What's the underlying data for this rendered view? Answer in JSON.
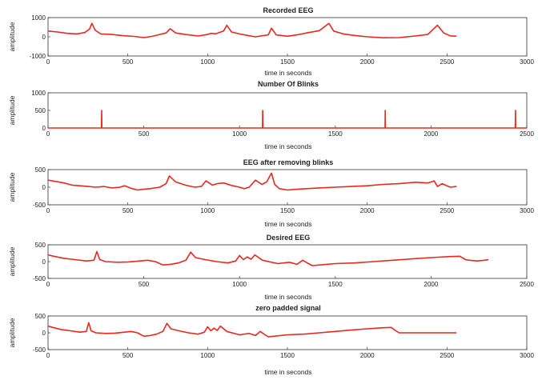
{
  "chart_data": [
    {
      "type": "line",
      "title": "Recorded EEG",
      "xlabel": "time in seconds",
      "ylabel": "amplitude",
      "xlim": [
        0,
        3000
      ],
      "ylim": [
        -1000,
        1000
      ],
      "xticks": [
        0,
        500,
        1000,
        1500,
        2000,
        2500,
        3000
      ],
      "yticks": [
        -1000,
        0,
        1000
      ],
      "series": [
        {
          "color": "#e8271e",
          "x": [
            0,
            60,
            120,
            180,
            230,
            260,
            275,
            295,
            330,
            400,
            470,
            540,
            600,
            650,
            700,
            740,
            765,
            800,
            860,
            940,
            1000,
            1020,
            1050,
            1100,
            1120,
            1150,
            1200,
            1250,
            1300,
            1380,
            1400,
            1430,
            1500,
            1560,
            1620,
            1700,
            1760,
            1790,
            1850,
            1920,
            2000,
            2100,
            2200,
            2300,
            2380,
            2440,
            2480,
            2520,
            2560
          ],
          "y": [
            300,
            250,
            180,
            150,
            220,
            400,
            700,
            350,
            150,
            120,
            60,
            20,
            -40,
            20,
            120,
            200,
            420,
            200,
            120,
            40,
            120,
            180,
            160,
            300,
            600,
            250,
            150,
            70,
            0,
            100,
            450,
            100,
            30,
            100,
            200,
            320,
            700,
            300,
            150,
            70,
            0,
            -50,
            -40,
            40,
            120,
            600,
            200,
            50,
            30
          ]
        }
      ]
    },
    {
      "type": "line",
      "title": "Number Of Blinks",
      "xlabel": "time in seconds",
      "ylabel": "amplitude",
      "xlim": [
        0,
        2500
      ],
      "ylim": [
        0,
        1000
      ],
      "xticks": [
        0,
        500,
        1000,
        1500,
        2000,
        2500
      ],
      "yticks": [
        0,
        500,
        1000
      ],
      "series": [
        {
          "color": "#e8271e",
          "x": [
            0,
            279,
            280,
            281,
            1120,
            1121,
            1122,
            1760,
            1761,
            1762,
            2440,
            2441,
            2442,
            2500
          ],
          "y": [
            0,
            0,
            500,
            0,
            0,
            500,
            0,
            0,
            500,
            0,
            0,
            500,
            0,
            0
          ]
        }
      ]
    },
    {
      "type": "line",
      "title": "EEG after removing blinks",
      "xlabel": "time in seconds",
      "ylabel": "amplitude",
      "xlim": [
        0,
        3000
      ],
      "ylim": [
        -500,
        500
      ],
      "xticks": [
        0,
        500,
        1000,
        1500,
        2000,
        2500,
        3000
      ],
      "yticks": [
        -500,
        0,
        500
      ],
      "series": [
        {
          "color": "#e8271e",
          "x": [
            0,
            40,
            100,
            150,
            200,
            250,
            300,
            350,
            400,
            450,
            480,
            520,
            560,
            600,
            640,
            700,
            740,
            760,
            800,
            860,
            920,
            960,
            990,
            1010,
            1030,
            1060,
            1100,
            1150,
            1200,
            1230,
            1260,
            1300,
            1340,
            1370,
            1400,
            1420,
            1450,
            1500,
            1560,
            1620,
            1700,
            1800,
            1900,
            2000,
            2100,
            2200,
            2300,
            2380,
            2420,
            2440,
            2470,
            2520,
            2560
          ],
          "y": [
            200,
            170,
            120,
            60,
            40,
            20,
            0,
            20,
            -20,
            0,
            40,
            -30,
            -80,
            -60,
            -40,
            0,
            100,
            320,
            150,
            60,
            0,
            20,
            180,
            120,
            60,
            100,
            120,
            50,
            0,
            -40,
            0,
            200,
            80,
            150,
            400,
            80,
            -40,
            -80,
            -60,
            -40,
            -20,
            0,
            20,
            40,
            80,
            100,
            140,
            120,
            180,
            20,
            100,
            0,
            20
          ]
        }
      ]
    },
    {
      "type": "line",
      "title": "Desired EEG",
      "xlabel": "time in seconds",
      "ylabel": "amplitude",
      "xlim": [
        0,
        2500
      ],
      "ylim": [
        -500,
        500
      ],
      "xticks": [
        0,
        500,
        1000,
        1500,
        2000,
        2500
      ],
      "yticks": [
        -500,
        0,
        500
      ],
      "series": [
        {
          "color": "#e8271e",
          "x": [
            0,
            30,
            80,
            140,
            200,
            240,
            255,
            270,
            300,
            360,
            420,
            480,
            520,
            560,
            600,
            640,
            680,
            720,
            745,
            770,
            820,
            880,
            940,
            980,
            1000,
            1020,
            1040,
            1060,
            1080,
            1120,
            1200,
            1260,
            1300,
            1330,
            1360,
            1380,
            1420,
            1500,
            1600,
            1700,
            1800,
            1900,
            2000,
            2100,
            2150,
            2180,
            2200,
            2240,
            2280,
            2300
          ],
          "y": [
            200,
            160,
            100,
            60,
            20,
            40,
            300,
            60,
            0,
            -20,
            -10,
            20,
            40,
            0,
            -100,
            -80,
            -40,
            40,
            280,
            120,
            60,
            0,
            -40,
            20,
            180,
            60,
            140,
            70,
            200,
            40,
            -60,
            -20,
            -80,
            40,
            -60,
            -120,
            -100,
            -60,
            -40,
            0,
            40,
            80,
            120,
            150,
            160,
            60,
            40,
            20,
            40,
            60
          ]
        }
      ]
    },
    {
      "type": "line",
      "title": "zero padded signal",
      "xlabel": "time in seconds",
      "ylabel": "amplitude",
      "xlim": [
        0,
        3000
      ],
      "ylim": [
        -500,
        500
      ],
      "xticks": [
        0,
        500,
        1000,
        1500,
        2000,
        2500,
        3000
      ],
      "yticks": [
        -500,
        0,
        500
      ],
      "series": [
        {
          "color": "#e8271e",
          "x": [
            0,
            30,
            80,
            140,
            200,
            240,
            255,
            270,
            300,
            360,
            420,
            480,
            520,
            560,
            600,
            640,
            680,
            720,
            745,
            770,
            820,
            880,
            940,
            980,
            1000,
            1020,
            1040,
            1060,
            1080,
            1120,
            1200,
            1260,
            1300,
            1330,
            1360,
            1380,
            1420,
            1500,
            1600,
            1700,
            1800,
            1900,
            2000,
            2100,
            2150,
            2180,
            2200,
            2230,
            2300,
            2400,
            2500,
            2560
          ],
          "y": [
            200,
            160,
            100,
            60,
            20,
            40,
            300,
            60,
            0,
            -20,
            -10,
            20,
            40,
            0,
            -100,
            -80,
            -40,
            40,
            280,
            120,
            60,
            0,
            -40,
            20,
            180,
            60,
            140,
            70,
            200,
            40,
            -60,
            -20,
            -80,
            40,
            -60,
            -120,
            -100,
            -60,
            -40,
            0,
            40,
            80,
            120,
            150,
            160,
            60,
            0,
            0,
            0,
            0,
            0,
            0
          ]
        }
      ]
    }
  ]
}
